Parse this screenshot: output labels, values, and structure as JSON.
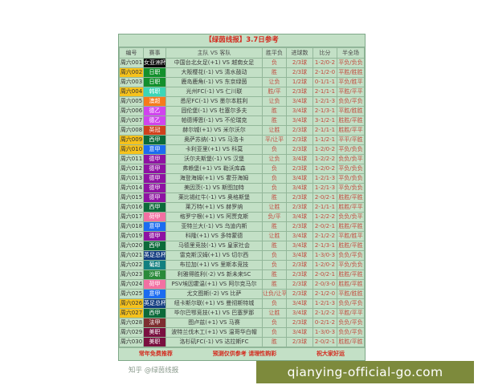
{
  "title": "【绿茵线报】3.7日参考",
  "columns": [
    "编号",
    "赛事",
    "主队 VS 客队",
    "胜平负",
    "进球数",
    "比分",
    "半全场"
  ],
  "colors": {
    "row_highlight": "#f6c21c",
    "table_bg": "#c3e0c6",
    "pick_text": "#c24a3e",
    "title_text": "#d42a1e",
    "overlay_bg": "#7d8a3c"
  },
  "rows": [
    {
      "id": "周六001",
      "event": "女亚洲杯",
      "event_color": "#0a0a0a",
      "match": "中国台北女足(+1) VS 越南女足",
      "result": "负",
      "goals": "2/3球",
      "score": "1-2/0-2",
      "htft": "平负/负负",
      "highlight": false
    },
    {
      "id": "周六002",
      "event": "日职",
      "event_color": "#12902c",
      "match": "大阪樱花(-1) VS 清水鼓动",
      "result": "胜",
      "goals": "2/3球",
      "score": "2-1/2-0",
      "htft": "平胜/胜胜",
      "highlight": true
    },
    {
      "id": "周六003",
      "event": "日职",
      "event_color": "#12902c",
      "match": "鹿岛鹿角(-1) VS 东京绿茵",
      "result": "让负",
      "goals": "1/2球",
      "score": "0-1/1-1",
      "htft": "平负/胜平",
      "highlight": false
    },
    {
      "id": "周六004",
      "event": "韩职",
      "event_color": "#3cd6b6",
      "match": "光州FC(-1) VS 仁川联",
      "result": "胜/平",
      "goals": "2/3球",
      "score": "2-1/1-1",
      "htft": "平胜/平平",
      "highlight": true
    },
    {
      "id": "周六005",
      "event": "澳超",
      "event_color": "#f67a1c",
      "match": "悉尼FC(-1) VS 墨尔本胜利",
      "result": "让负",
      "goals": "3/4球",
      "score": "1-2/1-3",
      "htft": "负负/平负",
      "highlight": false
    },
    {
      "id": "周六006",
      "event": "德乙",
      "event_color": "#d044ee",
      "match": "固伦堡(-1) VS 杜塞尔多夫",
      "result": "胜",
      "goals": "3/4球",
      "score": "2-1/3-1",
      "htft": "平胜/胜胜",
      "highlight": false
    },
    {
      "id": "周六007",
      "event": "德乙",
      "event_color": "#d044ee",
      "match": "帕德博恩(-1) VS 不伦瑞克",
      "result": "胜",
      "goals": "3/4球",
      "score": "3-1/2-1",
      "htft": "胜胜/平胜",
      "highlight": false
    },
    {
      "id": "周六008",
      "event": "英冠",
      "event_color": "#d0401c",
      "match": "赫尔城(+1) VS 米尔沃尔",
      "result": "让胜",
      "goals": "2/3球",
      "score": "2-1/1-1",
      "htft": "胜胜/平平",
      "highlight": false
    },
    {
      "id": "周六009",
      "event": "西甲",
      "event_color": "#0c6a3a",
      "match": "奥萨苏纳(-1) VS 马洛卡",
      "result": "平/让平",
      "goals": "2/3球",
      "score": "1-1/2-1",
      "htft": "平平/平胜",
      "highlight": true
    },
    {
      "id": "周六010",
      "event": "意甲",
      "event_color": "#1c6cf0",
      "match": "卡利亚里(+1) VS 科莫",
      "result": "负",
      "goals": "2/3球",
      "score": "1-2/0-2",
      "htft": "平负/负负",
      "highlight": true
    },
    {
      "id": "周六011",
      "event": "德甲",
      "event_color": "#8e12a2",
      "match": "沃尔夫斯堡(-1) VS 汉堡",
      "result": "让负",
      "goals": "3/4球",
      "score": "1-2/2-2",
      "htft": "负负/负平",
      "highlight": false
    },
    {
      "id": "周六012",
      "event": "德甲",
      "event_color": "#8e12a2",
      "match": "弗赖堡(+1) VS 勒沃库森",
      "result": "负",
      "goals": "2/3球",
      "score": "1-2/0-2",
      "htft": "平负/负负",
      "highlight": false
    },
    {
      "id": "周六013",
      "event": "德甲",
      "event_color": "#8e12a2",
      "match": "海登海姆(+1) VS 霍芬海姆",
      "result": "负",
      "goals": "3/4球",
      "score": "1-2/1-3",
      "htft": "平负/负负",
      "highlight": false
    },
    {
      "id": "周六014",
      "event": "德甲",
      "event_color": "#8e12a2",
      "match": "美因茨(-1) VS 斯图加特",
      "result": "负",
      "goals": "3/4球",
      "score": "1-2/1-3",
      "htft": "平负/负负",
      "highlight": false
    },
    {
      "id": "周六015",
      "event": "德甲",
      "event_color": "#8e12a2",
      "match": "莱比锡红牛(-1) VS 奥格斯堡",
      "result": "胜",
      "goals": "2/3球",
      "score": "2-0/2-1",
      "htft": "胜胜/平胜",
      "highlight": false
    },
    {
      "id": "周六016",
      "event": "西甲",
      "event_color": "#0c6a3a",
      "match": "莱万特(+1) VS 赫罗纳",
      "result": "让胜",
      "goals": "2/3球",
      "score": "2-1/1-1",
      "htft": "胜胜/平平",
      "highlight": false
    },
    {
      "id": "周六017",
      "event": "荷甲",
      "event_color": "#f270a2",
      "match": "格罗宁根(+1) VS 阿贾克斯",
      "result": "负/平",
      "goals": "3/4球",
      "score": "1-2/2-2",
      "htft": "负负/负平",
      "highlight": false
    },
    {
      "id": "周六018",
      "event": "意甲",
      "event_color": "#1c6cf0",
      "match": "亚特兰大(-1) VS 乌迪内斯",
      "result": "胜",
      "goals": "2/3球",
      "score": "2-0/2-1",
      "htft": "胜胜/平胜",
      "highlight": false
    },
    {
      "id": "周六019",
      "event": "德甲",
      "event_color": "#8e12a2",
      "match": "科隆(+1) VS 多特蒙德",
      "result": "让胜",
      "goals": "3/4球",
      "score": "2-1/2-2",
      "htft": "平胜/胜平",
      "highlight": false
    },
    {
      "id": "周六020",
      "event": "西甲",
      "event_color": "#0c6a3a",
      "match": "马德里竞技(-1) VS 皇家社会",
      "result": "胜",
      "goals": "3/4球",
      "score": "2-1/3-1",
      "htft": "胜胜/平胜",
      "highlight": false
    },
    {
      "id": "周六021",
      "event": "英足总杯",
      "event_color": "#123c80",
      "match": "雷克斯汉姆(+1) VS 切尔西",
      "result": "负",
      "goals": "3/4球",
      "score": "1-3/0-3",
      "htft": "负负/平负",
      "highlight": false
    },
    {
      "id": "周六022",
      "event": "葡超",
      "event_color": "#128080",
      "match": "布拉加(+1) VS 里斯本竞技",
      "result": "负",
      "goals": "2/3球",
      "score": "1-2/0-2",
      "htft": "平负/负负",
      "highlight": false
    },
    {
      "id": "周六023",
      "event": "沙职",
      "event_color": "#2a8a3a",
      "match": "利雅得胜利(-2) VS 新未来SC",
      "result": "胜",
      "goals": "2/3球",
      "score": "2-0/2-1",
      "htft": "胜胜/平胜",
      "highlight": false
    },
    {
      "id": "周六024",
      "event": "荷甲",
      "event_color": "#f270a2",
      "match": "PSV埃因霍温(+1) VS 阿尔克马尔",
      "result": "胜",
      "goals": "2/3球",
      "score": "2-0/3-0",
      "htft": "胜胜/平胜",
      "highlight": false
    },
    {
      "id": "周六025",
      "event": "意甲",
      "event_color": "#1c6cf0",
      "match": "尤文图斯(-2) VS 比萨",
      "result": "让负/让平",
      "goals": "2/3球",
      "score": "2-1/2-0",
      "htft": "平胜/胜胜",
      "highlight": false
    },
    {
      "id": "周六026",
      "event": "英足总杯",
      "event_color": "#123c80",
      "match": "纽卡斯尔联(+1) VS 曼彻斯特城",
      "result": "负",
      "goals": "3/4球",
      "score": "1-2/1-3",
      "htft": "负负/平负",
      "highlight": true
    },
    {
      "id": "周六027",
      "event": "西甲",
      "event_color": "#0c6a3a",
      "match": "毕尔巴鄂竞技(+1) VS 巴塞罗那",
      "result": "让胜",
      "goals": "3/4球",
      "score": "2-1/2-2",
      "htft": "平胜/平平",
      "highlight": true
    },
    {
      "id": "周六028",
      "event": "法甲",
      "event_color": "#7e2e30",
      "match": "图卢兹(+1) VS 马赛",
      "result": "负",
      "goals": "2/3球",
      "score": "0-2/1-2",
      "htft": "负负/平负",
      "highlight": false
    },
    {
      "id": "周六029",
      "event": "美职",
      "event_color": "#7a1040",
      "match": "波特兰伐木工(+1) VS 温哥华白帽",
      "result": "负",
      "goals": "3/4球",
      "score": "1-3/0-3",
      "htft": "负负/平负",
      "highlight": false
    },
    {
      "id": "周六030",
      "event": "美职",
      "event_color": "#7a1040",
      "match": "洛杉矶FC(-1) VS 达拉斯FC",
      "result": "胜",
      "goals": "2/3球",
      "score": "2-0/2-1",
      "htft": "胜胜/平胜",
      "highlight": false
    }
  ],
  "footer": [
    "常年免费推荐",
    "预测仅供参考 请理性购彩",
    "祝大家好运"
  ],
  "watermark": "知乎 @绿茵线报",
  "overlay_text": "qianying-official-go.com"
}
